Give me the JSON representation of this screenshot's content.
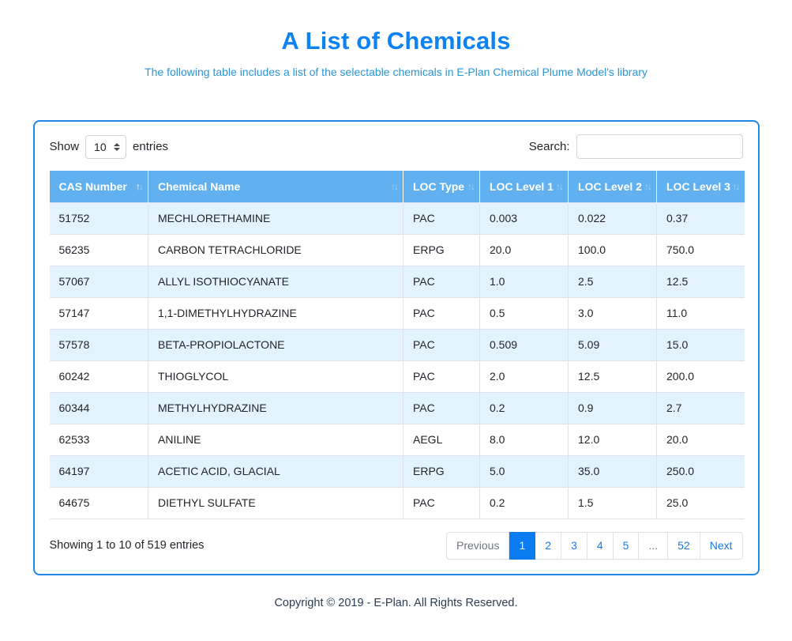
{
  "page": {
    "title": "A List of Chemicals",
    "subtitle": "The following table includes a list of the selectable chemicals in E-Plan Chemical Plume Model's library",
    "copyright": "Copyright © 2019 - E-Plan. All Rights Reserved."
  },
  "controls": {
    "show_label": "Show",
    "page_length": "10",
    "entries_label": "entries",
    "search_label": "Search:",
    "search_value": ""
  },
  "table": {
    "columns": [
      {
        "label": "CAS Number",
        "sort": "asc"
      },
      {
        "label": "Chemical Name",
        "sort": "none"
      },
      {
        "label": "LOC Type",
        "sort": "none"
      },
      {
        "label": "LOC Level 1",
        "sort": "none"
      },
      {
        "label": "LOC Level 2",
        "sort": "none"
      },
      {
        "label": "LOC Level 3",
        "sort": "none"
      }
    ],
    "rows": [
      [
        "51752",
        "MECHLORETHAMINE",
        "PAC",
        "0.003",
        "0.022",
        "0.37"
      ],
      [
        "56235",
        "CARBON TETRACHLORIDE",
        "ERPG",
        "20.0",
        "100.0",
        "750.0"
      ],
      [
        "57067",
        "ALLYL ISOTHIOCYANATE",
        "PAC",
        "1.0",
        "2.5",
        "12.5"
      ],
      [
        "57147",
        "1,1-DIMETHYLHYDRAZINE",
        "PAC",
        "0.5",
        "3.0",
        "11.0"
      ],
      [
        "57578",
        "BETA-PROPIOLACTONE",
        "PAC",
        "0.509",
        "5.09",
        "15.0"
      ],
      [
        "60242",
        "THIOGLYCOL",
        "PAC",
        "2.0",
        "12.5",
        "200.0"
      ],
      [
        "60344",
        "METHYLHYDRAZINE",
        "PAC",
        "0.2",
        "0.9",
        "2.7"
      ],
      [
        "62533",
        "ANILINE",
        "AEGL",
        "8.0",
        "12.0",
        "20.0"
      ],
      [
        "64197",
        "ACETIC ACID, GLACIAL",
        "ERPG",
        "5.0",
        "35.0",
        "250.0"
      ],
      [
        "64675",
        "DIETHYL SULFATE",
        "PAC",
        "0.2",
        "1.5",
        "25.0"
      ]
    ]
  },
  "footer": {
    "info": "Showing 1 to 10 of 519 entries",
    "pagination": [
      {
        "label": "Previous",
        "state": "disabled"
      },
      {
        "label": "1",
        "state": "active"
      },
      {
        "label": "2",
        "state": "link"
      },
      {
        "label": "3",
        "state": "link"
      },
      {
        "label": "4",
        "state": "link"
      },
      {
        "label": "5",
        "state": "link"
      },
      {
        "label": "...",
        "state": "ellipsis"
      },
      {
        "label": "52",
        "state": "link"
      },
      {
        "label": "Next",
        "state": "link"
      }
    ]
  },
  "icons": {
    "sort_up": "↑",
    "sort_down": "↓",
    "select_arrows": "select-spinner-icon"
  },
  "colors": {
    "title_blue": "#0d82f5",
    "subtitle_blue": "#2a95d8",
    "card_border_blue": "#1e87e5",
    "table_header_blue": "#61b1f1",
    "stripe_row_blue": "#e2f3fd",
    "pagination_active_blue": "#0d7bf0",
    "link_blue": "#1a7be8",
    "copyright_navy": "#2b3c51"
  }
}
